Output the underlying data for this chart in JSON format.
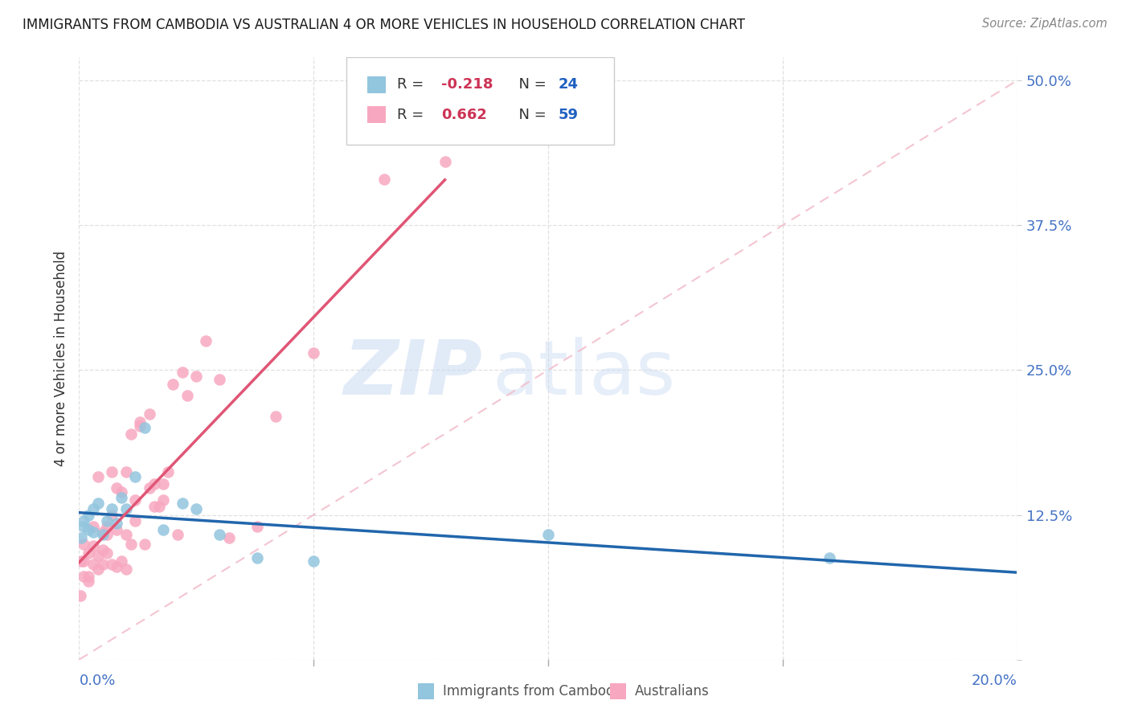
{
  "title": "IMMIGRANTS FROM CAMBODIA VS AUSTRALIAN 4 OR MORE VEHICLES IN HOUSEHOLD CORRELATION CHART",
  "source": "Source: ZipAtlas.com",
  "ylabel": "4 or more Vehicles in Household",
  "color_blue": "#92c5de",
  "color_pink": "#f7a8c0",
  "line_blue": "#2166ac",
  "line_pink": "#e05575",
  "line_diag_color": "#f2bfcc",
  "xlim": [
    0.0,
    0.2
  ],
  "ylim": [
    0.0,
    0.52
  ],
  "r_blue": "-0.218",
  "n_blue": "24",
  "r_pink": "0.662",
  "n_pink": "59",
  "blue_x": [
    0.0005,
    0.001,
    0.001,
    0.002,
    0.002,
    0.003,
    0.003,
    0.004,
    0.005,
    0.006,
    0.007,
    0.008,
    0.009,
    0.01,
    0.012,
    0.014,
    0.018,
    0.022,
    0.025,
    0.03,
    0.038,
    0.05,
    0.1,
    0.16
  ],
  "blue_y": [
    0.105,
    0.115,
    0.12,
    0.112,
    0.125,
    0.11,
    0.13,
    0.135,
    0.108,
    0.12,
    0.13,
    0.118,
    0.14,
    0.13,
    0.158,
    0.2,
    0.112,
    0.135,
    0.13,
    0.108,
    0.088,
    0.085,
    0.108,
    0.088
  ],
  "pink_x": [
    0.0003,
    0.0005,
    0.001,
    0.001,
    0.001,
    0.002,
    0.002,
    0.002,
    0.003,
    0.003,
    0.003,
    0.004,
    0.004,
    0.004,
    0.005,
    0.005,
    0.005,
    0.006,
    0.006,
    0.006,
    0.007,
    0.007,
    0.007,
    0.008,
    0.008,
    0.008,
    0.009,
    0.009,
    0.01,
    0.01,
    0.01,
    0.011,
    0.011,
    0.012,
    0.012,
    0.013,
    0.013,
    0.014,
    0.015,
    0.015,
    0.016,
    0.016,
    0.017,
    0.018,
    0.018,
    0.019,
    0.02,
    0.021,
    0.022,
    0.023,
    0.025,
    0.027,
    0.03,
    0.032,
    0.038,
    0.042,
    0.05,
    0.065,
    0.078
  ],
  "pink_y": [
    0.055,
    0.085,
    0.072,
    0.085,
    0.1,
    0.068,
    0.092,
    0.072,
    0.082,
    0.098,
    0.115,
    0.078,
    0.09,
    0.158,
    0.082,
    0.095,
    0.11,
    0.092,
    0.108,
    0.115,
    0.082,
    0.125,
    0.162,
    0.08,
    0.112,
    0.148,
    0.085,
    0.145,
    0.078,
    0.108,
    0.162,
    0.1,
    0.195,
    0.12,
    0.138,
    0.202,
    0.205,
    0.1,
    0.148,
    0.212,
    0.132,
    0.152,
    0.132,
    0.138,
    0.152,
    0.162,
    0.238,
    0.108,
    0.248,
    0.228,
    0.245,
    0.275,
    0.242,
    0.105,
    0.115,
    0.21,
    0.265,
    0.415,
    0.43
  ],
  "watermark_zip": "ZIP",
  "watermark_atlas": "atlas",
  "bg_color": "#ffffff",
  "grid_color": "#e0e0e0",
  "ytick_positions": [
    0.0,
    0.125,
    0.25,
    0.375,
    0.5
  ],
  "ytick_labels_right": [
    "",
    "12.5%",
    "25.0%",
    "37.5%",
    "50.0%"
  ],
  "xtick_positions": [
    0.0,
    0.05,
    0.1,
    0.15,
    0.2
  ],
  "legend_blue_text1": "R = ",
  "legend_blue_r": "-0.218",
  "legend_blue_text2": "  N = ",
  "legend_blue_n": "24",
  "legend_pink_text1": "R =  ",
  "legend_pink_r": "0.662",
  "legend_pink_text2": "  N = ",
  "legend_pink_n": "59",
  "bottom_label_blue": "Immigrants from Cambodia",
  "bottom_label_pink": "Australians",
  "tick_color": "#aaaaaa",
  "axis_label_color": "#4472c4",
  "text_color": "#333333",
  "title_color": "#1a1a1a",
  "source_color": "#888888"
}
